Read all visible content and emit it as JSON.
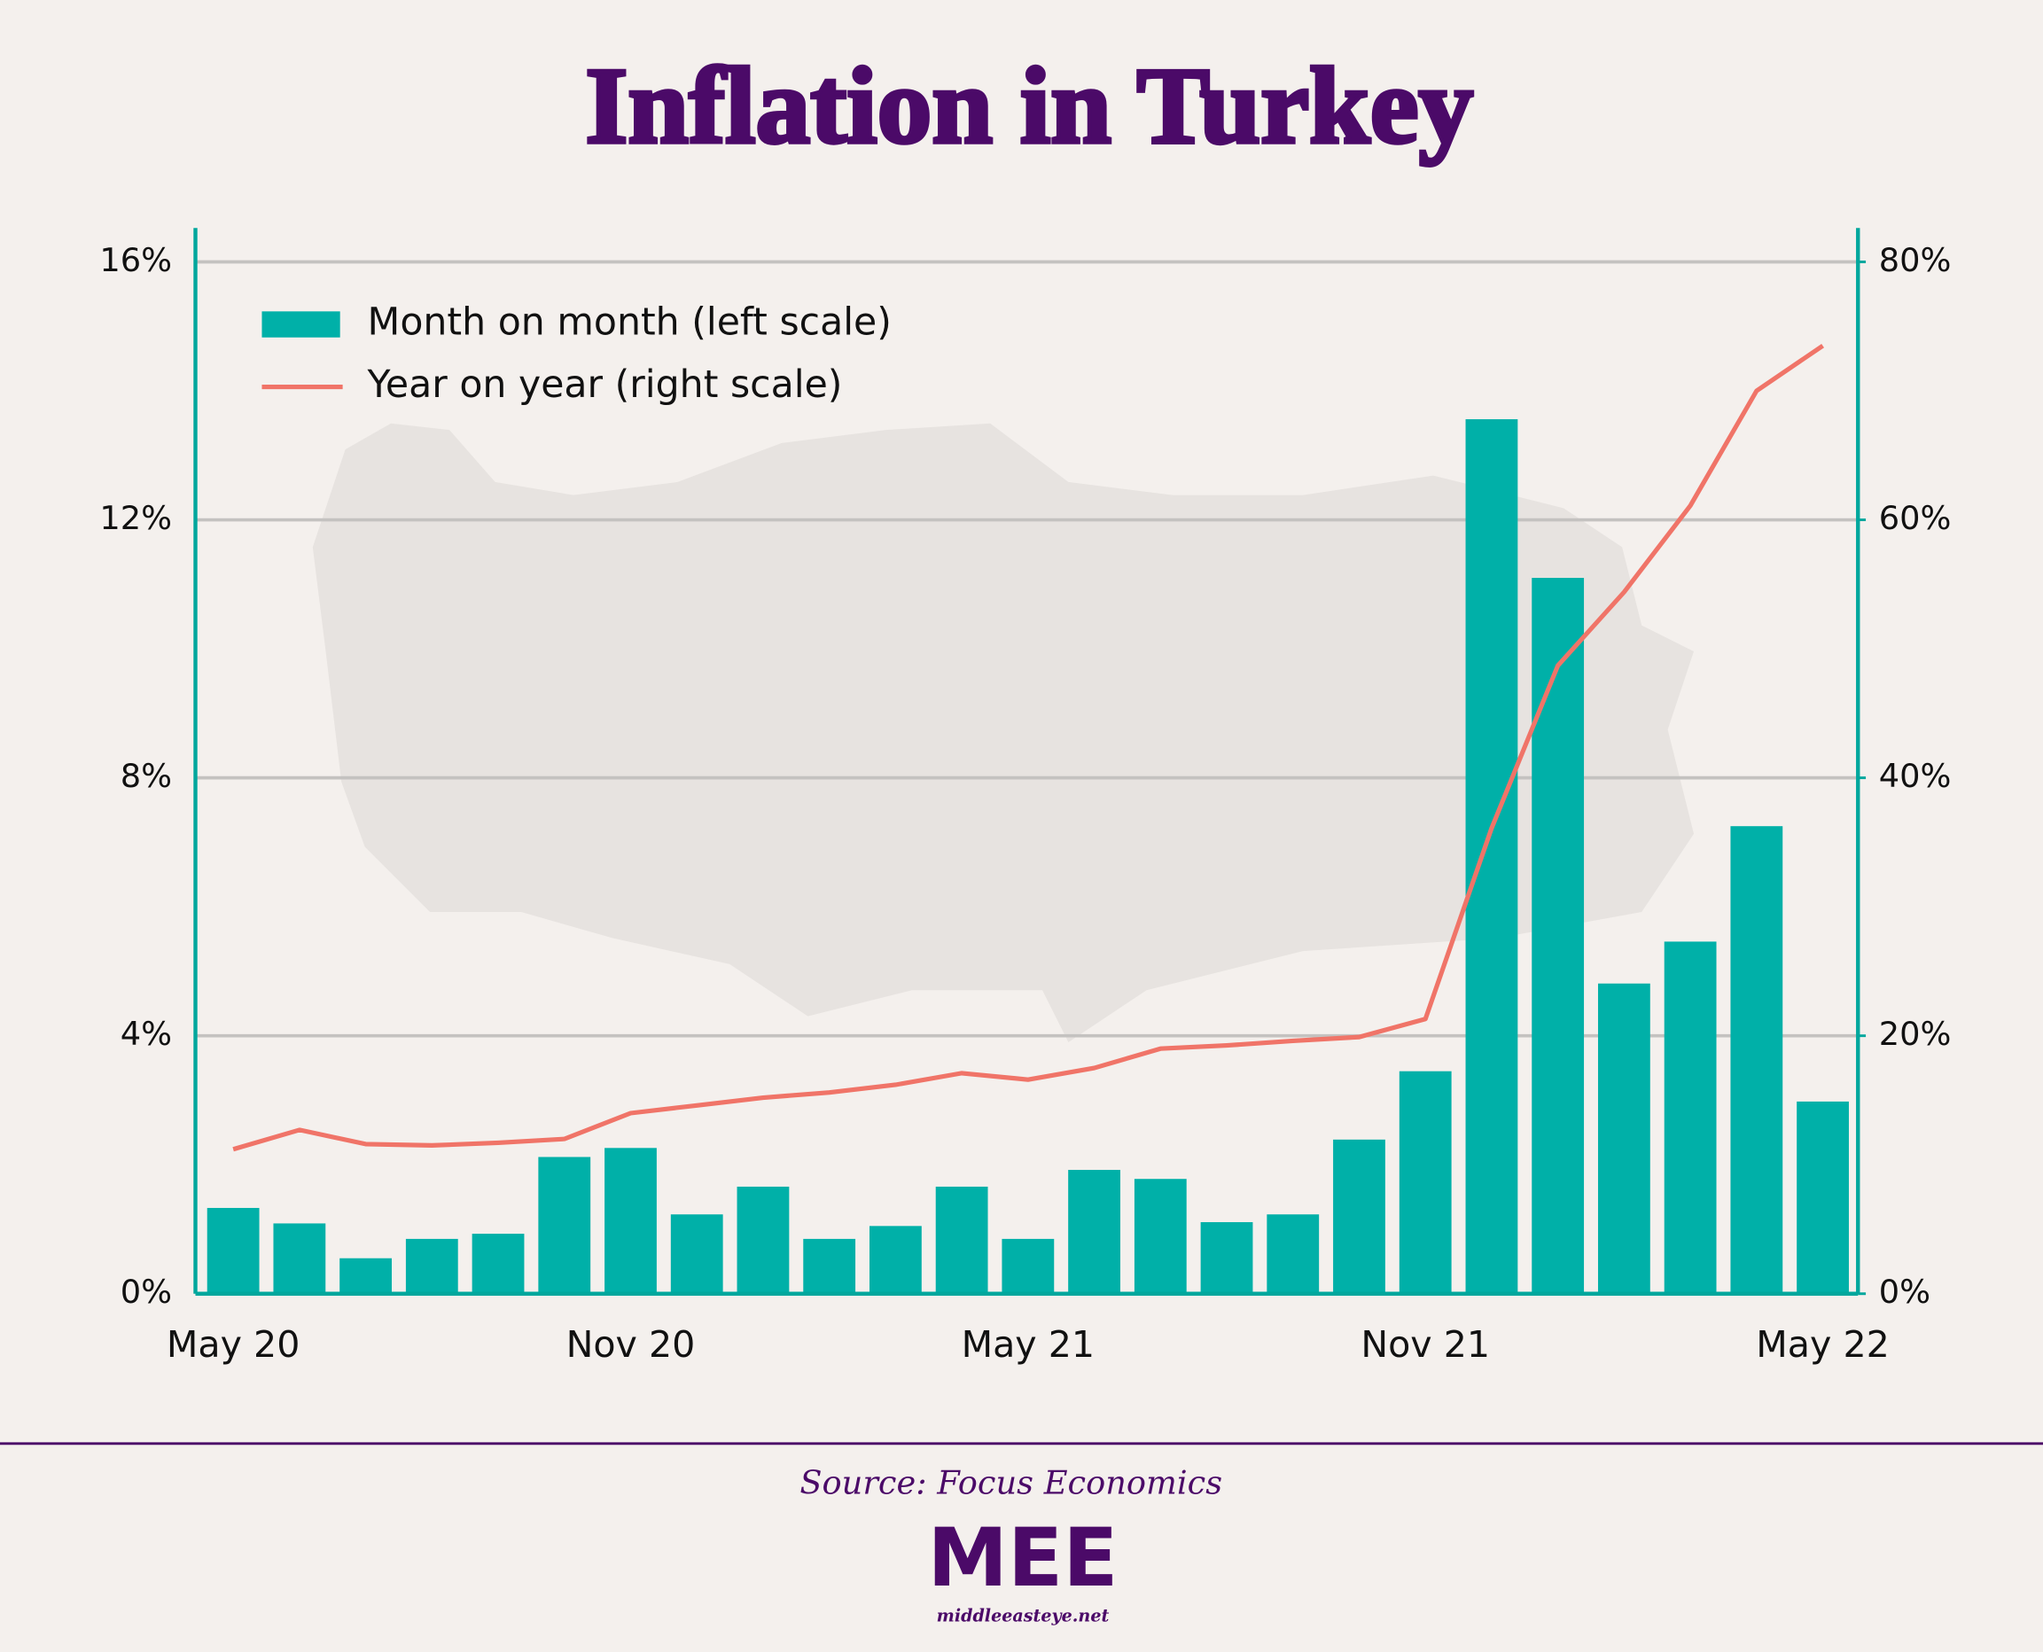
{
  "chart_data": {
    "type": "bar_line",
    "title": "Inflation in Turkey",
    "categories": [
      "May 20",
      null,
      null,
      null,
      null,
      null,
      "Nov 20",
      null,
      null,
      null,
      null,
      null,
      "May 21",
      null,
      null,
      null,
      null,
      null,
      "Nov 21",
      null,
      null,
      null,
      null,
      null,
      "May 22"
    ],
    "series": [
      {
        "name": "Month on month (left scale)",
        "type": "bar",
        "color": "#00b0a8",
        "axis": "y",
        "values": [
          1.33,
          1.09,
          0.55,
          0.85,
          0.93,
          2.12,
          2.26,
          1.23,
          1.66,
          0.85,
          1.05,
          1.66,
          0.85,
          1.92,
          1.78,
          1.11,
          1.23,
          2.39,
          3.45,
          13.56,
          11.1,
          4.81,
          5.46,
          7.25,
          2.98
        ]
      },
      {
        "name": "Year on year (right scale)",
        "type": "line",
        "color": "#f07468",
        "axis": "y2",
        "values": [
          11.2,
          12.7,
          11.6,
          11.5,
          11.7,
          12.0,
          14.0,
          14.6,
          15.2,
          15.6,
          16.2,
          17.1,
          16.6,
          17.5,
          19.0,
          19.25,
          19.6,
          19.9,
          21.3,
          36.1,
          48.7,
          54.4,
          61.1,
          70.0,
          73.5
        ]
      }
    ],
    "ylim": [
      0,
      16
    ],
    "yticks": [
      {
        "value": 0,
        "label": "0%"
      },
      {
        "value": 4,
        "label": "4%"
      },
      {
        "value": 8,
        "label": "8%"
      },
      {
        "value": 12,
        "label": "12%"
      },
      {
        "value": 16,
        "label": "16%"
      }
    ],
    "y2lim": [
      0,
      80
    ],
    "y2ticks": [
      {
        "value": 0,
        "label": "0%"
      },
      {
        "value": 20,
        "label": "20%"
      },
      {
        "value": 40,
        "label": "40%"
      },
      {
        "value": 60,
        "label": "60%"
      },
      {
        "value": 80,
        "label": "80%"
      }
    ],
    "grid": true,
    "legend": "top-left"
  },
  "footer": {
    "source": "Source: Focus Economics",
    "logo": "MEE",
    "website": "middleeasteye.net"
  }
}
